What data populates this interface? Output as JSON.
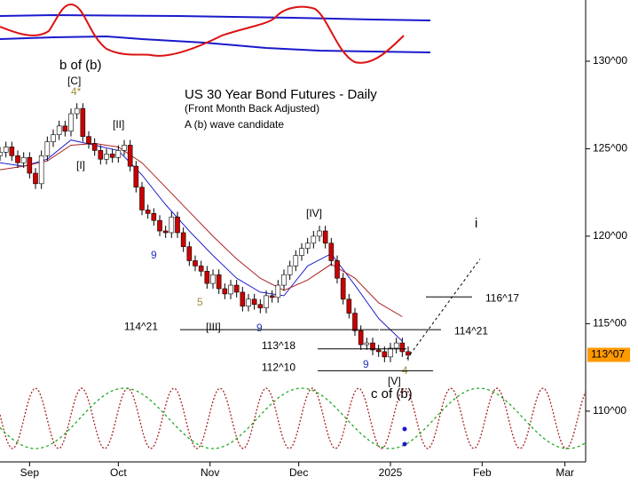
{
  "chart_data": {
    "type": "candlestick",
    "title": "US 30 Year Bond Futures - Daily",
    "subtitle": "(Front Month Back Adjusted)",
    "note": "A (b) wave candidate",
    "xlim": [
      -10,
      188
    ],
    "ylim": [
      107.1,
      133.5
    ],
    "xticks": [
      {
        "value": 0,
        "label": "Sep"
      },
      {
        "value": 30,
        "label": "Oct"
      },
      {
        "value": 61,
        "label": "Nov"
      },
      {
        "value": 91,
        "label": "Dec"
      },
      {
        "value": 122,
        "label": "2025"
      },
      {
        "value": 153,
        "label": "Feb"
      },
      {
        "value": 181,
        "label": "Mar"
      }
    ],
    "yticks": [
      {
        "value": 110,
        "label": "110^00"
      },
      {
        "value": 115,
        "label": "115^00"
      },
      {
        "value": 120,
        "label": "120^00"
      },
      {
        "value": 125,
        "label": "125^00"
      },
      {
        "value": 130,
        "label": "130^00"
      }
    ],
    "up_color": "#ffffff",
    "down_color": "#cc0000",
    "x": [
      -10,
      -8,
      -6,
      -4,
      -2,
      0,
      2,
      4,
      6,
      8,
      10,
      12,
      14,
      16,
      18,
      20,
      22,
      24,
      26,
      28,
      30,
      32,
      34,
      36,
      38,
      40,
      42,
      44,
      46,
      48,
      50,
      52,
      54,
      56,
      58,
      60,
      62,
      64,
      66,
      68,
      70,
      72,
      74,
      76,
      78,
      80,
      82,
      84,
      86,
      88,
      90,
      92,
      94,
      96,
      98,
      100,
      102,
      104,
      106,
      108,
      110,
      112,
      114,
      116,
      118,
      120,
      122,
      124,
      126,
      128
    ],
    "open": [
      124.6,
      124.8,
      125.1,
      124.6,
      124.2,
      124.5,
      123.6,
      123.0,
      124.6,
      125.4,
      125.8,
      126.3,
      126.0,
      127.0,
      127.3,
      125.7,
      125.3,
      124.9,
      124.4,
      124.7,
      124.5,
      124.9,
      125.2,
      124.0,
      122.8,
      121.5,
      121.3,
      120.9,
      120.3,
      120.2,
      121.1,
      120.2,
      119.4,
      118.6,
      118.3,
      118.0,
      117.3,
      117.8,
      117.0,
      116.7,
      117.2,
      116.8,
      116.0,
      116.4,
      116.1,
      115.9,
      116.6,
      116.5,
      117.2,
      117.8,
      118.3,
      118.9,
      119.3,
      119.6,
      120.0,
      120.3,
      119.6,
      118.6,
      117.6,
      116.4,
      115.6,
      114.6,
      113.8,
      113.9,
      113.5,
      113.4,
      113.1,
      113.6,
      113.9,
      113.4
    ],
    "high": [
      125.1,
      125.4,
      125.4,
      124.9,
      124.8,
      124.8,
      123.9,
      124.9,
      125.7,
      126.1,
      126.6,
      126.6,
      127.3,
      127.6,
      127.6,
      126.0,
      125.6,
      125.2,
      125.0,
      125.0,
      125.2,
      125.5,
      125.5,
      124.3,
      123.1,
      121.8,
      121.6,
      121.2,
      120.6,
      121.4,
      121.4,
      120.5,
      119.7,
      118.9,
      118.6,
      118.3,
      118.1,
      118.1,
      117.3,
      117.5,
      117.5,
      117.1,
      116.7,
      116.7,
      116.4,
      116.9,
      116.9,
      117.5,
      118.1,
      118.6,
      119.2,
      119.6,
      119.9,
      120.3,
      120.6,
      120.6,
      119.9,
      118.9,
      117.9,
      116.7,
      115.9,
      114.9,
      114.2,
      114.2,
      113.8,
      113.7,
      113.9,
      114.2,
      114.2,
      113.7
    ],
    "low": [
      124.3,
      124.5,
      124.3,
      123.9,
      123.9,
      123.3,
      122.7,
      122.7,
      124.3,
      125.1,
      125.5,
      125.7,
      125.7,
      126.7,
      125.4,
      125.0,
      124.6,
      124.1,
      124.1,
      124.2,
      124.2,
      124.6,
      123.7,
      122.5,
      121.2,
      121.0,
      120.6,
      120.0,
      119.9,
      119.9,
      119.9,
      119.1,
      118.3,
      118.0,
      117.7,
      117.0,
      117.0,
      116.7,
      116.4,
      116.4,
      116.5,
      115.7,
      115.7,
      115.8,
      115.6,
      115.6,
      116.2,
      116.2,
      116.9,
      117.5,
      118.0,
      118.6,
      119.0,
      119.3,
      119.7,
      119.3,
      118.3,
      117.3,
      116.1,
      115.3,
      114.3,
      113.5,
      113.5,
      113.2,
      113.1,
      112.8,
      112.8,
      113.3,
      113.1,
      112.9
    ],
    "close": [
      124.8,
      125.1,
      124.6,
      124.2,
      124.5,
      123.6,
      123.0,
      124.6,
      125.4,
      125.8,
      126.3,
      126.0,
      127.0,
      127.3,
      125.7,
      125.3,
      124.9,
      124.4,
      124.7,
      124.5,
      124.9,
      125.2,
      124.0,
      122.8,
      121.5,
      121.3,
      120.9,
      120.3,
      120.2,
      121.1,
      120.2,
      119.4,
      118.6,
      118.3,
      118.0,
      117.3,
      117.8,
      117.0,
      116.7,
      117.2,
      116.8,
      116.0,
      116.4,
      116.1,
      115.9,
      116.6,
      116.5,
      117.2,
      117.8,
      118.3,
      118.9,
      119.3,
      119.6,
      120.0,
      120.3,
      119.6,
      118.6,
      117.6,
      116.4,
      115.6,
      114.6,
      113.8,
      113.9,
      113.5,
      113.4,
      113.1,
      113.6,
      113.9,
      113.4,
      113.2
    ],
    "lines": [
      {
        "color": "#2222cc",
        "x": [
          -10,
          -2,
          6,
          14,
          22,
          30,
          38,
          46,
          54,
          62,
          70,
          78,
          86,
          94,
          102,
          110,
          118,
          126
        ],
        "values": [
          124.2,
          124.0,
          124.4,
          125.5,
          125.2,
          124.9,
          123.5,
          121.8,
          120.3,
          118.9,
          117.6,
          116.8,
          116.6,
          118.3,
          119.0,
          117.2,
          115.3,
          114.0
        ]
      },
      {
        "color": "#aa2222",
        "x": [
          -10,
          -2,
          6,
          14,
          22,
          30,
          38,
          46,
          54,
          62,
          70,
          78,
          86,
          94,
          102,
          110,
          118,
          126
        ],
        "values": [
          123.8,
          124.0,
          124.3,
          125.2,
          125.3,
          125.1,
          124.2,
          122.8,
          121.4,
          120.0,
          118.7,
          117.6,
          116.9,
          117.5,
          118.4,
          117.6,
          116.2,
          115.4
        ]
      }
    ],
    "levels": [
      {
        "value": 114.656,
        "label": "114^21",
        "from": 50.9,
        "to": 118.1,
        "side": "left"
      },
      {
        "value": 114.656,
        "label": "114^21",
        "from": 118.4,
        "to": 139.1,
        "side": "right"
      },
      {
        "value": 113.563,
        "label": "113^18",
        "from": 97.4,
        "to": 127.4,
        "side": "left"
      },
      {
        "value": 112.313,
        "label": "112^10",
        "from": 97.4,
        "to": 136.4,
        "side": "left"
      },
      {
        "value": 116.531,
        "label": "116^17",
        "from": 134.0,
        "to": 149.6,
        "side": "right"
      }
    ],
    "projection": {
      "x": [
        127.6,
        152.3
      ],
      "values": [
        113.0,
        118.7
      ]
    },
    "last": {
      "value": 113.219,
      "label": "113^07",
      "color": "#ff9900"
    },
    "annotations": [
      "b of (b)",
      "[C]",
      "4*",
      "[II]",
      "[I]",
      "9",
      "5",
      "9",
      "[III]",
      "[IV]",
      "9",
      "4",
      "[V]",
      "c of (b)",
      "i"
    ]
  }
}
